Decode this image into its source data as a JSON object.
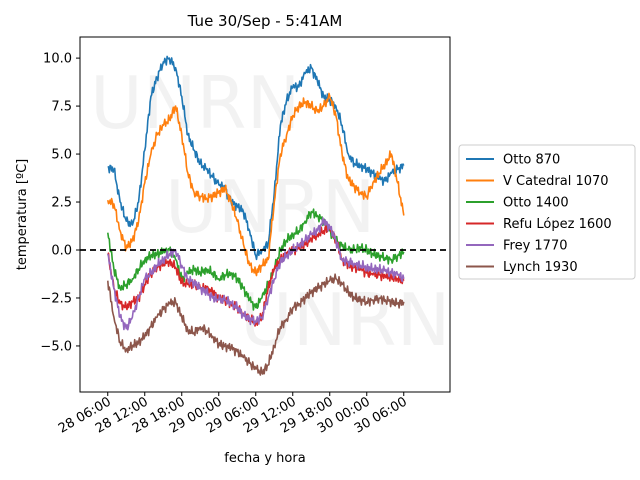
{
  "chart_data": {
    "type": "line",
    "title": "Tue 30/Sep - 5:41AM",
    "xlabel": "fecha y hora",
    "ylabel": "temperatura [ºC]",
    "xlim": [
      -9,
      111
    ],
    "ylim": [
      -7.4,
      11.1
    ],
    "x_ticks": [
      {
        "hours": 0,
        "label": "28 06:00"
      },
      {
        "hours": 12,
        "label": "28 12:00"
      },
      {
        "hours": 24,
        "label": "28 18:00"
      },
      {
        "hours": 36,
        "label": "29 00:00"
      },
      {
        "hours": 48,
        "label": "29 06:00"
      },
      {
        "hours": 60,
        "label": "29 12:00"
      },
      {
        "hours": 72,
        "label": "29 18:00"
      },
      {
        "hours": 84,
        "label": "30 00:00"
      },
      {
        "hours": 96,
        "label": "30 06:00"
      }
    ],
    "y_ticks": [
      {
        "value": -5.0,
        "label": "−5.0"
      },
      {
        "value": -2.5,
        "label": "−2.5"
      },
      {
        "value": 0.0,
        "label": "0.0"
      },
      {
        "value": 2.5,
        "label": "2.5"
      },
      {
        "value": 5.0,
        "label": "5.0"
      },
      {
        "value": 7.5,
        "label": "7.5"
      },
      {
        "value": 10.0,
        "label": "10.0"
      }
    ],
    "reference_line": {
      "y": 0,
      "style": "dashed",
      "color": "#000000"
    },
    "legend_position": "outside-right",
    "watermark": "UNRN",
    "series": [
      {
        "name": "Otto 870",
        "color": "#1f77b4",
        "x": [
          0,
          2,
          4,
          6,
          8,
          10,
          12,
          14,
          16,
          18,
          20,
          22,
          24,
          26,
          28,
          30,
          32,
          34,
          36,
          38,
          40,
          42,
          44,
          46,
          48,
          50,
          52,
          54,
          56,
          58,
          60,
          62,
          64,
          66,
          68,
          70,
          72,
          74,
          76,
          78,
          80,
          82,
          84,
          86,
          88,
          90,
          92,
          94,
          96
        ],
        "y": [
          4.3,
          4.2,
          2.5,
          1.5,
          1.3,
          2.5,
          5.2,
          8.0,
          9.0,
          9.8,
          10.0,
          9.5,
          8.0,
          6.0,
          5.2,
          4.5,
          4.2,
          3.8,
          3.4,
          3.2,
          2.5,
          2.3,
          2.0,
          1.0,
          -0.3,
          0.0,
          0.3,
          3.0,
          6.5,
          7.8,
          8.5,
          8.5,
          9.2,
          9.5,
          8.8,
          8.0,
          7.8,
          7.5,
          6.5,
          5.0,
          4.5,
          4.4,
          4.2,
          4.0,
          3.7,
          3.6,
          4.0,
          4.2,
          4.4
        ]
      },
      {
        "name": "V Catedral 1070",
        "color": "#ff7f0e",
        "x": [
          0,
          2,
          4,
          6,
          8,
          10,
          12,
          14,
          16,
          18,
          20,
          22,
          24,
          26,
          28,
          30,
          32,
          34,
          36,
          38,
          40,
          42,
          44,
          46,
          48,
          50,
          52,
          54,
          56,
          58,
          60,
          62,
          64,
          66,
          68,
          70,
          72,
          74,
          76,
          78,
          80,
          82,
          84,
          86,
          88,
          90,
          92,
          94,
          96
        ],
        "y": [
          2.6,
          2.4,
          1.0,
          0.1,
          0.5,
          1.5,
          3.5,
          5.0,
          6.0,
          6.5,
          6.8,
          7.5,
          6.0,
          4.0,
          3.0,
          2.8,
          2.7,
          2.8,
          3.0,
          3.2,
          2.5,
          1.5,
          0.3,
          -0.8,
          -1.2,
          -0.8,
          -0.5,
          2.5,
          5.0,
          6.0,
          7.0,
          7.5,
          7.7,
          7.5,
          7.2,
          7.5,
          8.0,
          7.0,
          5.0,
          3.7,
          3.3,
          3.0,
          2.8,
          3.5,
          4.0,
          4.5,
          5.0,
          3.5,
          1.8
        ]
      },
      {
        "name": "Otto 1400",
        "color": "#2ca02c",
        "x": [
          0,
          2,
          4,
          6,
          8,
          10,
          12,
          14,
          16,
          18,
          20,
          22,
          24,
          26,
          28,
          30,
          32,
          34,
          36,
          38,
          40,
          42,
          44,
          46,
          48,
          50,
          52,
          54,
          56,
          58,
          60,
          62,
          64,
          66,
          68,
          70,
          72,
          74,
          76,
          78,
          80,
          82,
          84,
          86,
          88,
          90,
          92,
          94,
          96
        ],
        "y": [
          0.9,
          -1.0,
          -2.0,
          -1.8,
          -1.5,
          -1.0,
          -0.5,
          -0.3,
          -0.2,
          -0.1,
          0.0,
          -0.5,
          -1.5,
          -1.2,
          -1.0,
          -1.2,
          -1.0,
          -1.2,
          -1.5,
          -1.3,
          -1.2,
          -1.5,
          -2.0,
          -2.6,
          -3.0,
          -2.5,
          -1.8,
          -1.0,
          0.0,
          0.5,
          0.8,
          1.0,
          1.5,
          2.0,
          1.8,
          1.5,
          1.0,
          0.5,
          0.2,
          0.0,
          0.0,
          0.1,
          0.0,
          -0.2,
          -0.3,
          -0.4,
          -0.5,
          -0.3,
          -0.1
        ]
      },
      {
        "name": "Refu López 1600",
        "color": "#d62728",
        "x": [
          0,
          2,
          4,
          6,
          8,
          10,
          12,
          14,
          16,
          18,
          20,
          22,
          24,
          26,
          28,
          30,
          32,
          34,
          36,
          38,
          40,
          42,
          44,
          46,
          48,
          50,
          52,
          54,
          56,
          58,
          60,
          62,
          64,
          66,
          68,
          70,
          72,
          74,
          76,
          78,
          80,
          82,
          84,
          86,
          88,
          90,
          92,
          94,
          96
        ],
        "y": [
          -0.2,
          -2.0,
          -2.8,
          -3.0,
          -2.7,
          -2.5,
          -1.8,
          -1.2,
          -0.9,
          -0.7,
          -0.6,
          -0.9,
          -1.7,
          -1.8,
          -1.8,
          -2.0,
          -2.0,
          -2.2,
          -2.5,
          -2.6,
          -2.8,
          -3.0,
          -3.3,
          -3.6,
          -3.8,
          -3.5,
          -2.0,
          -1.0,
          -0.5,
          -0.2,
          0.0,
          0.1,
          0.3,
          0.6,
          0.8,
          1.0,
          1.2,
          0.5,
          -0.5,
          -0.8,
          -0.9,
          -1.0,
          -1.2,
          -1.3,
          -1.3,
          -1.4,
          -1.4,
          -1.5,
          -1.6
        ]
      },
      {
        "name": "Frey 1770",
        "color": "#9467bd",
        "x": [
          0,
          2,
          4,
          6,
          8,
          10,
          12,
          14,
          16,
          18,
          20,
          22,
          24,
          26,
          28,
          30,
          32,
          34,
          36,
          38,
          40,
          42,
          44,
          46,
          48,
          50,
          52,
          54,
          56,
          58,
          60,
          62,
          64,
          66,
          68,
          70,
          72,
          74,
          76,
          78,
          80,
          82,
          84,
          86,
          88,
          90,
          92,
          94,
          96
        ],
        "y": [
          -0.2,
          -2.0,
          -3.5,
          -4.1,
          -3.5,
          -2.5,
          -1.5,
          -1.2,
          -0.8,
          -0.5,
          -0.2,
          0.0,
          -0.8,
          -1.5,
          -1.7,
          -2.0,
          -2.2,
          -2.5,
          -2.6,
          -2.6,
          -2.8,
          -3.0,
          -3.4,
          -3.6,
          -3.7,
          -3.5,
          -2.5,
          -1.5,
          -0.6,
          -0.3,
          0.0,
          0.2,
          0.5,
          0.8,
          1.0,
          1.5,
          1.2,
          0.5,
          -0.5,
          -0.6,
          -0.7,
          -0.8,
          -0.9,
          -1.0,
          -1.0,
          -1.1,
          -1.2,
          -1.3,
          -1.5
        ]
      },
      {
        "name": "Lynch 1930",
        "color": "#8c564b",
        "x": [
          0,
          2,
          4,
          6,
          8,
          10,
          12,
          14,
          16,
          18,
          20,
          22,
          24,
          26,
          28,
          30,
          32,
          34,
          36,
          38,
          40,
          42,
          44,
          46,
          48,
          50,
          52,
          54,
          56,
          58,
          60,
          62,
          64,
          66,
          68,
          70,
          72,
          74,
          76,
          78,
          80,
          82,
          84,
          86,
          88,
          90,
          92,
          94,
          96
        ],
        "y": [
          -1.6,
          -3.5,
          -4.8,
          -5.2,
          -5.0,
          -4.8,
          -4.5,
          -4.0,
          -3.5,
          -3.1,
          -2.8,
          -2.7,
          -3.5,
          -4.2,
          -4.3,
          -4.0,
          -4.2,
          -4.5,
          -4.9,
          -5.0,
          -5.1,
          -5.3,
          -5.6,
          -5.9,
          -6.2,
          -6.4,
          -6.0,
          -5.0,
          -4.0,
          -3.6,
          -3.0,
          -2.8,
          -2.5,
          -2.2,
          -2.0,
          -1.8,
          -1.6,
          -1.5,
          -1.8,
          -2.2,
          -2.5,
          -2.6,
          -2.7,
          -2.6,
          -2.5,
          -2.6,
          -2.7,
          -2.8,
          -2.7
        ]
      }
    ]
  }
}
